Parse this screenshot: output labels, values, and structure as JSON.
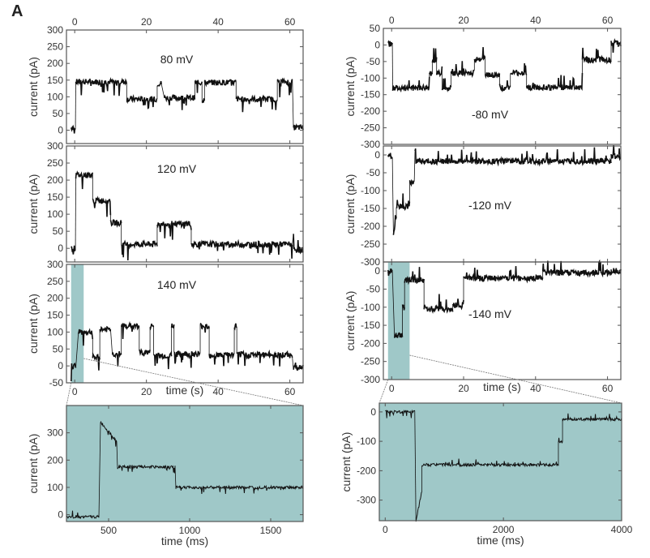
{
  "figure_letter": "A",
  "colors": {
    "trace": "#111111",
    "frame": "#555555",
    "highlight": "#9fc8c8",
    "zoom_line": "#777777"
  },
  "chart_data": [
    {
      "id": "p80",
      "type": "line",
      "title": "80 mV",
      "xlabel": "",
      "ylabel": "current (pA)",
      "xlim": [
        -2.3,
        63.7
      ],
      "ylim": [
        -40,
        300
      ],
      "xticks": [
        0,
        20,
        40,
        60
      ],
      "xticks_top_labels": true,
      "yticks": [
        0,
        50,
        100,
        150,
        200,
        250,
        300
      ],
      "segments": [
        {
          "x": [
            -1,
            0.2
          ],
          "y": [
            8,
            8
          ]
        },
        {
          "x": [
            0.3,
            14.5
          ],
          "y": [
            145,
            145
          ]
        },
        {
          "x": [
            14.5,
            23
          ],
          "y": [
            93,
            93
          ]
        },
        {
          "x": [
            23,
            24.2
          ],
          "y": [
            140,
            140
          ]
        },
        {
          "x": [
            25,
            33.5
          ],
          "y": [
            97,
            97
          ]
        },
        {
          "x": [
            33.5,
            35.5
          ],
          "y": [
            142,
            142
          ]
        },
        {
          "x": [
            35.5,
            36.2
          ],
          "y": [
            90,
            90
          ]
        },
        {
          "x": [
            36.2,
            45
          ],
          "y": [
            143,
            143
          ]
        },
        {
          "x": [
            45,
            56.5
          ],
          "y": [
            93,
            93
          ]
        },
        {
          "x": [
            56.5,
            60.7
          ],
          "y": [
            145,
            145
          ]
        },
        {
          "x": [
            61,
            63.7
          ],
          "y": [
            8,
            8
          ]
        }
      ]
    },
    {
      "id": "p120",
      "type": "line",
      "title": "120 mV",
      "xlabel": "",
      "ylabel": "current (pA)",
      "xlim": [
        -2.3,
        63.7
      ],
      "ylim": [
        -40,
        300
      ],
      "xticks": [
        0,
        20,
        40,
        60
      ],
      "yticks": [
        0,
        50,
        100,
        150,
        200,
        250,
        300
      ],
      "segments": [
        {
          "x": [
            -1,
            0.2
          ],
          "y": [
            0,
            0
          ]
        },
        {
          "x": [
            0.3,
            5
          ],
          "y": [
            215,
            215
          ]
        },
        {
          "x": [
            5,
            10
          ],
          "y": [
            140,
            140
          ]
        },
        {
          "x": [
            10,
            13
          ],
          "y": [
            75,
            75
          ]
        },
        {
          "x": [
            13,
            23
          ],
          "y": [
            12,
            12
          ]
        },
        {
          "x": [
            23,
            32.5
          ],
          "y": [
            72,
            72
          ]
        },
        {
          "x": [
            32.5,
            60.7
          ],
          "y": [
            12,
            12
          ]
        },
        {
          "x": [
            61,
            63.7
          ],
          "y": [
            -5,
            -5
          ]
        }
      ]
    },
    {
      "id": "p140",
      "type": "line",
      "title": "140 mV",
      "xlabel": "time (s)",
      "ylabel": "current (pA)",
      "xlim": [
        -2.3,
        63.7
      ],
      "ylim": [
        -50,
        300
      ],
      "xticks": [
        0,
        20,
        40,
        60
      ],
      "yticks": [
        -50,
        0,
        50,
        100,
        150,
        200,
        250,
        300
      ],
      "highlight": [
        -1,
        2.5
      ],
      "segments": [
        {
          "x": [
            -1,
            0.3
          ],
          "y": [
            0,
            0
          ]
        },
        {
          "x": [
            1,
            5
          ],
          "y": [
            100,
            100
          ]
        },
        {
          "x": [
            5,
            7
          ],
          "y": [
            25,
            25
          ]
        },
        {
          "x": [
            7,
            10
          ],
          "y": [
            108,
            108
          ]
        },
        {
          "x": [
            10.5,
            13
          ],
          "y": [
            35,
            35
          ]
        },
        {
          "x": [
            13,
            18
          ],
          "y": [
            118,
            118
          ]
        },
        {
          "x": [
            18,
            21
          ],
          "y": [
            40,
            40
          ]
        },
        {
          "x": [
            21,
            22
          ],
          "y": [
            118,
            118
          ]
        },
        {
          "x": [
            22,
            27
          ],
          "y": [
            30,
            30
          ]
        },
        {
          "x": [
            27,
            27.7
          ],
          "y": [
            120,
            120
          ]
        },
        {
          "x": [
            27.7,
            35
          ],
          "y": [
            35,
            35
          ]
        },
        {
          "x": [
            35,
            37.5
          ],
          "y": [
            118,
            118
          ]
        },
        {
          "x": [
            37.5,
            44.5
          ],
          "y": [
            32,
            32
          ]
        },
        {
          "x": [
            44.5,
            45.2
          ],
          "y": [
            118,
            118
          ]
        },
        {
          "x": [
            45.2,
            60.7
          ],
          "y": [
            33,
            33
          ]
        },
        {
          "x": [
            61,
            63.7
          ],
          "y": [
            -5,
            -5
          ]
        }
      ]
    },
    {
      "id": "z140",
      "type": "line",
      "title": "",
      "xlabel": "time (ms)",
      "ylabel": "current (pA)",
      "xlim": [
        240,
        1700
      ],
      "ylim": [
        -25,
        400
      ],
      "xticks": [
        500,
        1000,
        1500
      ],
      "yticks": [
        0,
        100,
        200,
        300
      ],
      "segments": [
        {
          "x": [
            240,
            440
          ],
          "y": [
            -8,
            -8
          ]
        },
        {
          "x": [
            450,
            550
          ],
          "y": [
            340,
            268
          ]
        },
        {
          "x": [
            555,
            910
          ],
          "y": [
            175,
            175
          ]
        },
        {
          "x": [
            915,
            1700
          ],
          "y": [
            100,
            100
          ]
        }
      ]
    },
    {
      "id": "n80",
      "type": "line",
      "title": "-80 mV",
      "xlabel": "",
      "ylabel": "current (pA)",
      "xlim": [
        -2.3,
        63.7
      ],
      "ylim": [
        -300,
        50
      ],
      "xticks": [
        0,
        20,
        40,
        60
      ],
      "xticks_top_labels": true,
      "yticks": [
        -300,
        -250,
        -200,
        -150,
        -100,
        -50,
        0,
        50
      ],
      "segments": [
        {
          "x": [
            -1,
            0.2
          ],
          "y": [
            3,
            3
          ]
        },
        {
          "x": [
            0.3,
            10.5
          ],
          "y": [
            -130,
            -130
          ]
        },
        {
          "x": [
            10.5,
            11.3
          ],
          "y": [
            -88,
            -88
          ]
        },
        {
          "x": [
            11.3,
            12.5
          ],
          "y": [
            -45,
            -45
          ]
        },
        {
          "x": [
            12.5,
            14
          ],
          "y": [
            -85,
            -85
          ]
        },
        {
          "x": [
            14,
            16.5
          ],
          "y": [
            -130,
            -130
          ]
        },
        {
          "x": [
            16.5,
            23
          ],
          "y": [
            -85,
            -85
          ]
        },
        {
          "x": [
            23,
            26
          ],
          "y": [
            -42,
            -42
          ]
        },
        {
          "x": [
            26,
            30
          ],
          "y": [
            -90,
            -90
          ]
        },
        {
          "x": [
            30,
            33
          ],
          "y": [
            -130,
            -130
          ]
        },
        {
          "x": [
            33,
            37.5
          ],
          "y": [
            -85,
            -85
          ]
        },
        {
          "x": [
            37.5,
            53
          ],
          "y": [
            -128,
            -128
          ]
        },
        {
          "x": [
            53,
            61
          ],
          "y": [
            -45,
            -45
          ]
        },
        {
          "x": [
            61,
            63.7
          ],
          "y": [
            5,
            5
          ]
        }
      ]
    },
    {
      "id": "n120",
      "type": "line",
      "title": "-120 mV",
      "xlabel": "",
      "ylabel": "current (pA)",
      "xlim": [
        -2.3,
        63.7
      ],
      "ylim": [
        -300,
        25
      ],
      "xticks": [
        0,
        20,
        40,
        60
      ],
      "yticks": [
        -300,
        -250,
        -200,
        -150,
        -100,
        -50,
        0
      ],
      "segments": [
        {
          "x": [
            -1,
            0.2
          ],
          "y": [
            -2,
            -2
          ]
        },
        {
          "x": [
            0.5,
            1.3
          ],
          "y": [
            -220,
            -180
          ]
        },
        {
          "x": [
            1.3,
            5
          ],
          "y": [
            -145,
            -145
          ]
        },
        {
          "x": [
            5,
            6.3
          ],
          "y": [
            -78,
            -78
          ]
        },
        {
          "x": [
            6.5,
            61
          ],
          "y": [
            -18,
            -18
          ]
        },
        {
          "x": [
            61,
            63.7
          ],
          "y": [
            -3,
            -3
          ]
        }
      ]
    },
    {
      "id": "n140",
      "type": "line",
      "title": "-140 mV",
      "xlabel": "time (s)",
      "ylabel": "current (pA)",
      "xlim": [
        -2.3,
        63.7
      ],
      "ylim": [
        -300,
        25
      ],
      "xticks": [
        0,
        20,
        40,
        60
      ],
      "yticks": [
        -300,
        -250,
        -200,
        -150,
        -100,
        -50,
        0
      ],
      "highlight": [
        -1,
        5
      ],
      "segments": [
        {
          "x": [
            -1,
            0.2
          ],
          "y": [
            0,
            0
          ]
        },
        {
          "x": [
            0.8,
            3
          ],
          "y": [
            -178,
            -178
          ]
        },
        {
          "x": [
            3,
            3.6
          ],
          "y": [
            -100,
            -100
          ]
        },
        {
          "x": [
            3.6,
            9
          ],
          "y": [
            -25,
            -25
          ]
        },
        {
          "x": [
            9,
            17
          ],
          "y": [
            -105,
            -105
          ]
        },
        {
          "x": [
            17,
            20
          ],
          "y": [
            -95,
            -95
          ]
        },
        {
          "x": [
            20,
            42
          ],
          "y": [
            -20,
            -20
          ]
        },
        {
          "x": [
            42,
            61
          ],
          "y": [
            -5,
            -5
          ]
        },
        {
          "x": [
            61,
            63.7
          ],
          "y": [
            0,
            0
          ]
        }
      ]
    },
    {
      "id": "zn140",
      "type": "line",
      "title": "",
      "xlabel": "time (ms)",
      "ylabel": "current (pA)",
      "xlim": [
        -100,
        4000
      ],
      "ylim": [
        -370,
        30
      ],
      "xticks": [
        0,
        2000,
        4000
      ],
      "yticks": [
        -300,
        -200,
        -100,
        0
      ],
      "segments": [
        {
          "x": [
            0,
            500
          ],
          "y": [
            0,
            0
          ]
        },
        {
          "x": [
            520,
            620
          ],
          "y": [
            -370,
            -270
          ]
        },
        {
          "x": [
            620,
            2930
          ],
          "y": [
            -180,
            -180
          ]
        },
        {
          "x": [
            2930,
            3000
          ],
          "y": [
            -100,
            -100
          ]
        },
        {
          "x": [
            3000,
            4000
          ],
          "y": [
            -25,
            -25
          ]
        }
      ]
    }
  ]
}
